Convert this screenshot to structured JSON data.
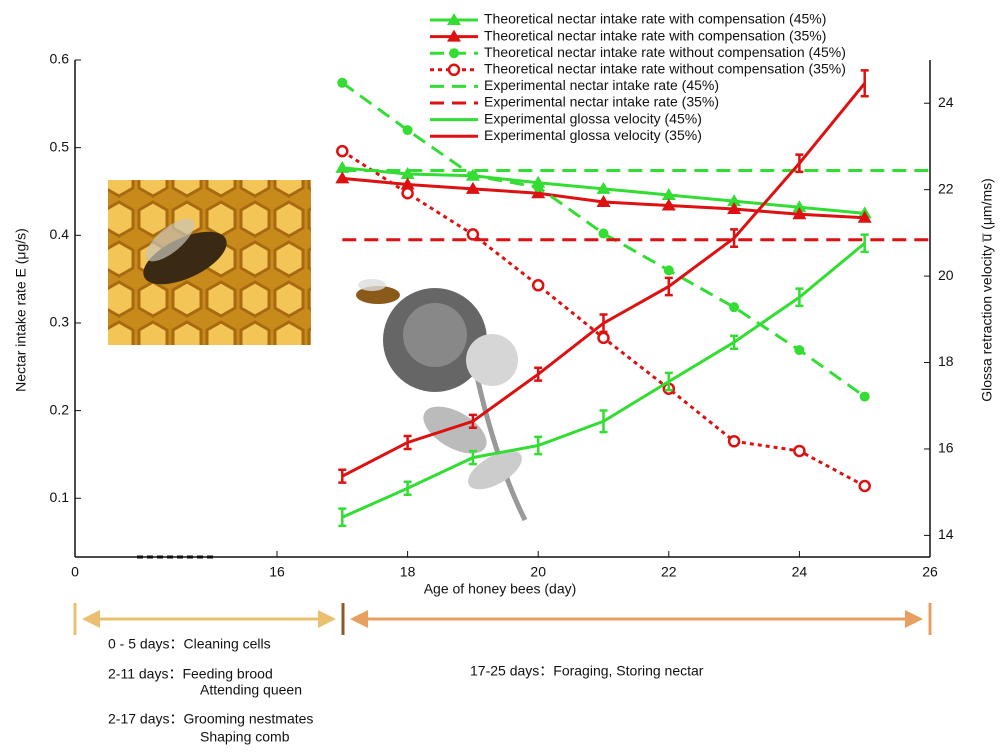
{
  "chart_data": {
    "type": "line",
    "xlabel": "Age of honey bees (day)",
    "ylabel": "Nectar intake rate E (μg/s)",
    "y2label": "Glossa retraction velocity u̅ (μm/ms)",
    "xlim": [
      0,
      26
    ],
    "xbreak": [
      0,
      16
    ],
    "xticks": [
      0,
      16,
      18,
      20,
      22,
      24,
      26
    ],
    "ylim": [
      0.033,
      0.6
    ],
    "yticks": [
      0.1,
      0.2,
      0.3,
      0.4,
      0.5,
      0.6
    ],
    "y2lim": [
      13.5,
      25
    ],
    "y2ticks": [
      14,
      16,
      18,
      20,
      22,
      24
    ],
    "series": [
      {
        "name": "Theoretical nectar intake rate with compensation (45%)",
        "color": "#33dd33",
        "marker": "triangle",
        "dash": "solid",
        "x": [
          17,
          18,
          19,
          20,
          21,
          22,
          23,
          24,
          25
        ],
        "values": [
          0.477,
          0.47,
          0.468,
          0.46,
          0.453,
          0.446,
          0.439,
          0.432,
          0.425
        ]
      },
      {
        "name": "Theoretical nectar intake rate with compensation (35%)",
        "color": "#dd1111",
        "marker": "triangle",
        "dash": "solid",
        "x": [
          17,
          18,
          19,
          20,
          21,
          22,
          23,
          24,
          25
        ],
        "values": [
          0.465,
          0.458,
          0.453,
          0.448,
          0.438,
          0.434,
          0.43,
          0.424,
          0.42
        ]
      },
      {
        "name": "Theoretical nectar intake rate without compensation (45%)",
        "color": "#33dd33",
        "marker": "circle",
        "dash": "dashed",
        "x": [
          17,
          18,
          19,
          20,
          21,
          22,
          23,
          24,
          25
        ],
        "values": [
          0.574,
          0.52,
          0.468,
          0.455,
          0.402,
          0.36,
          0.318,
          0.269,
          0.216
        ]
      },
      {
        "name": "Theoretical nectar intake rate without compensation (35%)",
        "color": "#dd1111",
        "marker": "open-circle",
        "dash": "dotted",
        "x": [
          17,
          18,
          19,
          20,
          21,
          22,
          23,
          24,
          25
        ],
        "values": [
          0.496,
          0.448,
          0.401,
          0.343,
          0.283,
          0.225,
          0.165,
          0.154,
          0.114
        ]
      },
      {
        "name": "Experimental nectar intake rate (45%)",
        "color": "#33dd33",
        "marker": null,
        "dash": "dashed",
        "x": [
          17,
          26
        ],
        "values": [
          0.474,
          0.474
        ]
      },
      {
        "name": "Experimental nectar intake rate (35%)",
        "color": "#dd1111",
        "marker": null,
        "dash": "dashed",
        "x": [
          17,
          26
        ],
        "values": [
          0.395,
          0.395
        ]
      },
      {
        "name": "Experimental glossa velocity (45%)",
        "color": "#33dd33",
        "marker": null,
        "dash": "solid",
        "axis": "y2",
        "x": [
          17,
          18,
          19,
          20,
          21,
          22,
          23,
          24,
          25
        ],
        "values": [
          14.42,
          15.09,
          15.8,
          16.08,
          16.64,
          17.56,
          18.47,
          19.51,
          20.76
        ],
        "errors": [
          0.2,
          0.15,
          0.15,
          0.2,
          0.25,
          0.2,
          0.15,
          0.2,
          0.2
        ]
      },
      {
        "name": "Experimental glossa velocity (35%)",
        "color": "#dd1111",
        "marker": null,
        "dash": "solid",
        "axis": "y2",
        "x": [
          17,
          18,
          19,
          20,
          21,
          22,
          23,
          24,
          25
        ],
        "values": [
          15.37,
          16.15,
          16.64,
          17.73,
          18.91,
          19.76,
          20.88,
          22.61,
          24.46
        ],
        "errors": [
          0.15,
          0.15,
          0.15,
          0.15,
          0.2,
          0.2,
          0.2,
          0.2,
          0.3
        ]
      }
    ],
    "annotations": [
      "0 - 5 days：Cleaning cells",
      "2-11 days：Feeding brood",
      "Attending queen",
      "2-17 days：Grooming nestmates",
      "Shaping comb",
      "17-25 days：Foraging, Storing nectar"
    ]
  }
}
